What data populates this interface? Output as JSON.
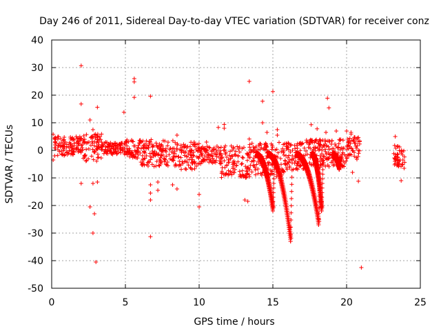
{
  "chart_data": {
    "type": "scatter",
    "title": "Day 246 of 2011, Sidereal Day-to-day VTEC variation (SDTVAR) for receiver conz",
    "xlabel": "GPS time / hours",
    "ylabel": "SDTVAR / TECUs",
    "xlim": [
      0,
      25
    ],
    "ylim": [
      -50,
      40
    ],
    "xticks": [
      "0",
      "5",
      "10",
      "15",
      "20",
      "25"
    ],
    "yticks": [
      "40",
      "30",
      "20",
      "10",
      "0",
      "-10",
      "-20",
      "-30",
      "-40",
      "-50"
    ],
    "grid": true,
    "marker": "+",
    "color": "#ff0000",
    "series": [
      {
        "name": "SDTVAR",
        "points": [
          [
            2.0,
            30.7
          ],
          [
            2.0,
            16.8
          ],
          [
            2.0,
            -12.0
          ],
          [
            2.6,
            -20.5
          ],
          [
            2.8,
            -30.0
          ],
          [
            2.9,
            -23.0
          ],
          [
            3.0,
            -40.5
          ],
          [
            3.1,
            15.6
          ],
          [
            3.1,
            -11.5
          ],
          [
            2.8,
            -12.0
          ],
          [
            2.6,
            11.0
          ],
          [
            2.8,
            7.5
          ],
          [
            4.9,
            13.8
          ],
          [
            5.6,
            26.0
          ],
          [
            5.6,
            24.8
          ],
          [
            5.6,
            19.2
          ],
          [
            6.7,
            19.6
          ],
          [
            6.7,
            -31.3
          ],
          [
            6.7,
            -18.0
          ],
          [
            6.7,
            -15.5
          ],
          [
            6.7,
            -12.5
          ],
          [
            7.2,
            -11.5
          ],
          [
            7.2,
            -14.5
          ],
          [
            8.2,
            -12.5
          ],
          [
            8.5,
            -14.0
          ],
          [
            8.5,
            5.5
          ],
          [
            10.0,
            -20.5
          ],
          [
            10.0,
            -16.0
          ],
          [
            10.5,
            3.0
          ],
          [
            11.3,
            8.3
          ],
          [
            11.7,
            9.4
          ],
          [
            11.7,
            8.0
          ],
          [
            13.1,
            -18.0
          ],
          [
            13.3,
            -18.5
          ],
          [
            13.4,
            25.0
          ],
          [
            13.4,
            4.1
          ],
          [
            14.3,
            17.8
          ],
          [
            14.3,
            10.0
          ],
          [
            14.6,
            6.5
          ],
          [
            15.0,
            21.3
          ],
          [
            15.3,
            7.5
          ],
          [
            15.3,
            5.5
          ],
          [
            17.6,
            9.3
          ],
          [
            18.0,
            7.8
          ],
          [
            18.6,
            6.5
          ],
          [
            18.7,
            18.9
          ],
          [
            18.8,
            15.4
          ],
          [
            19.3,
            7.0
          ],
          [
            20.0,
            7.0
          ],
          [
            20.3,
            6.5
          ],
          [
            20.8,
            -11.2
          ],
          [
            20.4,
            -8.0
          ],
          [
            21.0,
            -42.5
          ],
          [
            23.3,
            5.0
          ],
          [
            23.7,
            -11.0
          ],
          [
            23.9,
            -6.5
          ],
          [
            0.1,
            5.8
          ],
          [
            0.1,
            -3.5
          ],
          [
            0.2,
            -2.0
          ]
        ],
        "trace_bands": [
          [
            0.1,
            2.1,
            -2,
            5
          ],
          [
            2.1,
            3.4,
            -4,
            6
          ],
          [
            3.4,
            5.0,
            -1.5,
            3
          ],
          [
            5.0,
            6.0,
            -3,
            4
          ],
          [
            6.0,
            8.3,
            -6,
            4
          ],
          [
            8.3,
            10.0,
            -7,
            3
          ],
          [
            10.0,
            11.5,
            -5,
            1.5
          ],
          [
            11.5,
            13.3,
            -10,
            2
          ],
          [
            13.3,
            15.8,
            -10,
            3
          ],
          [
            15.8,
            17.2,
            -7,
            3
          ],
          [
            17.2,
            20.0,
            -6,
            4
          ],
          [
            20.0,
            20.9,
            -4,
            6
          ],
          [
            23.2,
            24.0,
            -6,
            2
          ]
        ],
        "dips": [
          [
            13.8,
            15.0,
            -22
          ],
          [
            14.6,
            16.2,
            -33
          ],
          [
            16.5,
            18.1,
            -27
          ],
          [
            17.6,
            18.3,
            -22
          ],
          [
            19.0,
            19.5,
            -7
          ]
        ]
      }
    ]
  }
}
